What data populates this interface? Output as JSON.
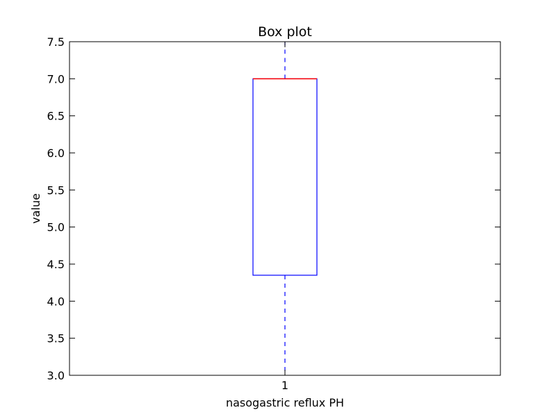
{
  "chart_data": {
    "type": "box",
    "title": "Box plot",
    "xlabel": "nasogastric reflux PH",
    "ylabel": "value",
    "ylim": [
      3.0,
      7.5
    ],
    "yticks": [
      "3.0",
      "3.5",
      "4.0",
      "4.5",
      "5.0",
      "5.5",
      "6.0",
      "6.5",
      "7.0",
      "7.5"
    ],
    "categories": [
      "1"
    ],
    "boxes": [
      {
        "category": "1",
        "whisker_low": 3.0,
        "q1": 4.35,
        "median": 7.0,
        "q3": 7.0,
        "whisker_high": 7.5
      }
    ],
    "grid": false,
    "colors": {
      "box": "#0000ff",
      "median": "#ff0000",
      "whisker": "#0000ff",
      "axes": "#000000"
    }
  }
}
